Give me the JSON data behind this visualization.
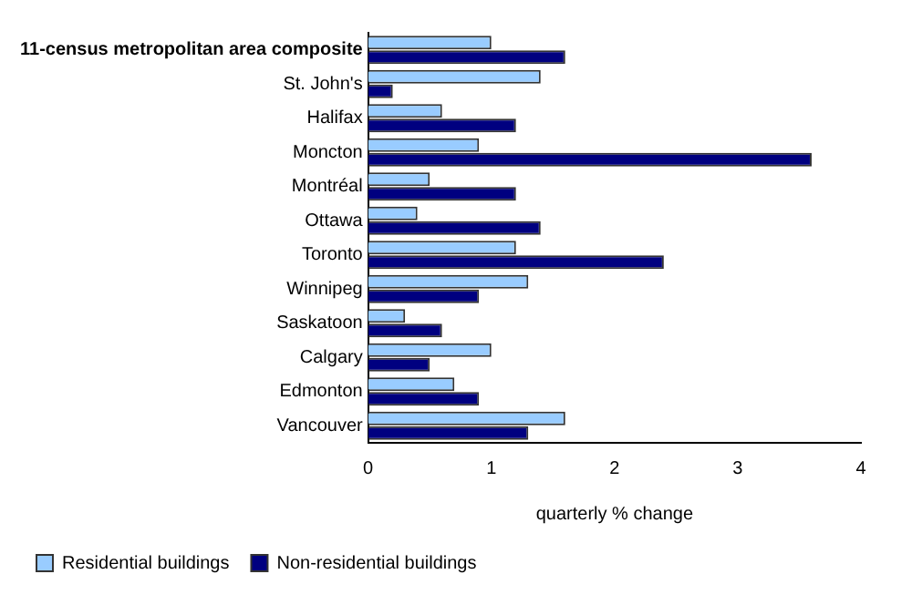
{
  "chart_data": {
    "type": "bar",
    "orientation": "horizontal",
    "xlabel": "quarterly % change",
    "categories": [
      "11-census metropolitan area composite",
      "St. John's",
      "Halifax",
      "Moncton",
      "Montréal",
      "Ottawa",
      "Toronto",
      "Winnipeg",
      "Saskatoon",
      "Calgary",
      "Edmonton",
      "Vancouver"
    ],
    "series": [
      {
        "name": "Residential buildings",
        "color": "#99ccff",
        "values": [
          1.0,
          1.4,
          0.6,
          0.9,
          0.5,
          0.4,
          1.2,
          1.3,
          0.3,
          1.0,
          0.7,
          1.6
        ]
      },
      {
        "name": "Non-residential buildings",
        "color": "#000080",
        "values": [
          1.6,
          0.2,
          1.2,
          3.6,
          1.2,
          1.4,
          2.4,
          0.9,
          0.6,
          0.5,
          0.9,
          1.3
        ]
      }
    ],
    "xlim": [
      0,
      4
    ],
    "xticks": [
      0,
      1,
      2,
      3,
      4
    ],
    "grid": false,
    "legend": "bottom"
  }
}
